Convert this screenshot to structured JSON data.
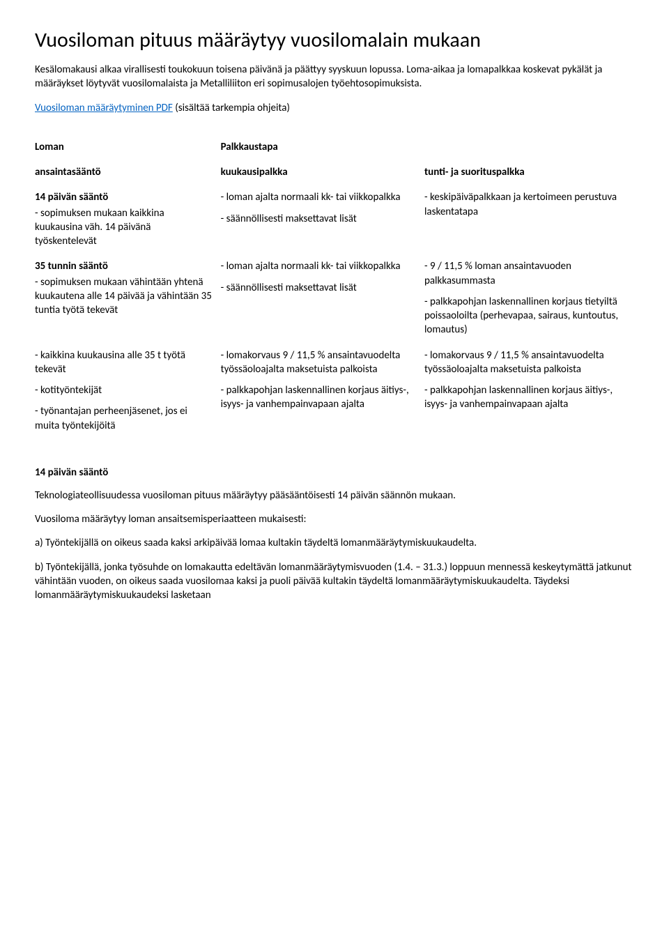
{
  "title": "Vuosiloman pituus määräytyy vuosilomalain mukaan",
  "intro": "Kesälomakausi alkaa virallisesti toukokuun toisena päivänä ja päättyy syyskuun lopussa. Loma-aikaa ja lomapalkkaa koskevat pykälät ja määräykset löytyvät vuosilomalaista ja Metalliliiton eri sopimusalojen työehtosopimuksista.",
  "pdfLink": "Vuosiloman määräytyminen PDF",
  "pdfSuffix": " (sisältää tarkempia ohjeita)",
  "table": {
    "header": {
      "loman": "Loman",
      "palkkaustapa": "Palkkaustapa",
      "ansainta": "ansaintasääntö",
      "kk": "kuukausipalkka",
      "tunti": "tunti- ja suorituspalkka"
    },
    "rows": [
      {
        "col1": {
          "title": "14 päivän sääntö",
          "desc": "- sopimuksen mukaan kaikkina kuukausina väh. 14 päivänä työskentelevät"
        },
        "col2": [
          "- loman ajalta normaali kk- tai viikkopalkka",
          "- säännöllisesti maksettavat lisät"
        ],
        "col3": [
          "- keskipäiväpalkkaan ja kertoimeen perustuva laskentatapa"
        ]
      },
      {
        "col1": {
          "title": "35 tunnin sääntö",
          "desc": "- sopimuksen mukaan vähintään yhtenä kuukautena alle 14 päivää  ja vähintään 35 tuntia työtä tekevät"
        },
        "col2": [
          "- loman ajalta normaali kk- tai viikkopalkka",
          "- säännöllisesti maksettavat lisät"
        ],
        "col3": [
          "-  9 / 11,5 % loman ansaintavuoden palkkasummasta",
          "- palkkapohjan laskennallinen korjaus tietyiltä poissaoloilta (perhevapaa, sairaus, kuntoutus, lomautus)"
        ]
      },
      {
        "col1": {
          "items": [
            "- kaikkina kuukausina alle 35 t työtä tekevät",
            "- kotityöntekijät",
            "- työnantajan perheenjäsenet, jos ei muita työntekijöitä"
          ]
        },
        "col2": [
          "- lomakorvaus 9 / 11,5 % ansaintavuodelta työssäoloajalta maksetuista palkoista",
          "- palkkapohjan laskennallinen korjaus  äitiys-, isyys- ja vanhempainvapaan ajalta"
        ],
        "col3": [
          "- lomakorvaus 9 / 11,5 % ansaintavuodelta työssäoloajalta maksetuista palkoista",
          "- palkkapohjan laskennallinen korjaus  äitiys-, isyys- ja vanhempainvapaan ajalta"
        ]
      }
    ]
  },
  "section14": {
    "title": "14 päivän sääntö",
    "p1": "Teknologiateollisuudessa vuosiloman pituus määräytyy pääsääntöisesti 14 päivän säännön mukaan.",
    "p2": "Vuosiloma määräytyy loman ansaitsemisperiaatteen mukaisesti:",
    "p3": "a) Työntekijällä on oikeus saada kaksi arkipäivää lomaa kultakin täydeltä lomanmääräytymiskuukaudelta.",
    "p4": "b) Työntekijällä, jonka työsuhde on lomakautta edeltävän lomanmääräytymisvuoden (1.4. – 31.3.) loppuun mennessä keskeytymättä jatkunut vähintään vuoden, on oikeus saada vuosilomaa kaksi ja puoli päivää kultakin täydeltä lomanmääräytymiskuukaudelta. Täydeksi lomanmääräytymiskuukaudeksi lasketaan"
  }
}
